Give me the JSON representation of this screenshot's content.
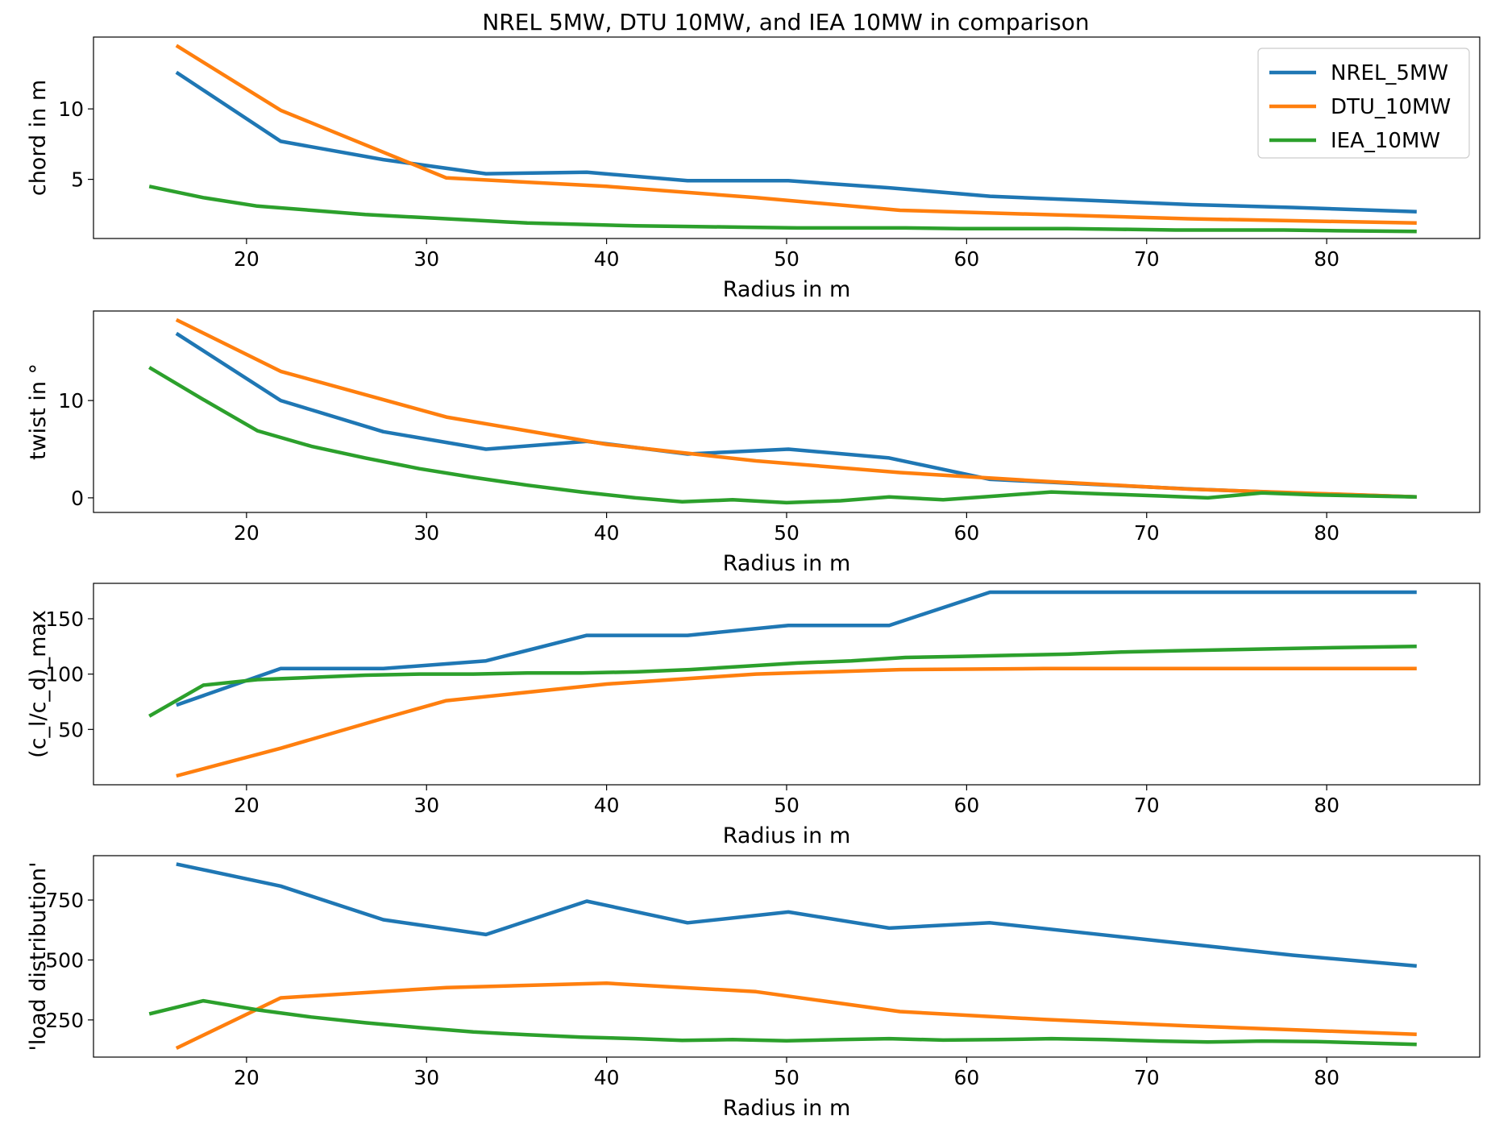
{
  "figure": {
    "title": "NREL 5MW, DTU 10MW, and IEA 10MW in comparison"
  },
  "colors": {
    "NREL_5MW": "#1f77b4",
    "DTU_10MW": "#ff7f0e",
    "IEA_10MW": "#2ca02c"
  },
  "legend": {
    "placement": "upper-right",
    "subplot": 0,
    "entries": [
      "NREL_5MW",
      "DTU_10MW",
      "IEA_10MW"
    ]
  },
  "chart_data": [
    {
      "type": "line",
      "title": "NREL 5MW, DTU 10MW, and IEA 10MW in comparison",
      "xlabel": "Radius in m",
      "ylabel": "chord in m",
      "ylabel_display": "chord in m",
      "xlim": [
        11.5,
        88.5
      ],
      "ylim": [
        0.8,
        15.1
      ],
      "xticks": [
        20,
        30,
        40,
        50,
        60,
        70,
        80
      ],
      "yticks": [
        5,
        10
      ],
      "grid": false,
      "series": [
        {
          "name": "NREL_5MW",
          "x": [
            16.1,
            21.9,
            27.6,
            33.3,
            38.9,
            44.5,
            50.1,
            55.7,
            61.3,
            66.9,
            72.5,
            78.1,
            85.0
          ],
          "y": [
            12.6,
            7.7,
            6.4,
            5.4,
            5.5,
            4.9,
            4.9,
            4.4,
            3.8,
            3.5,
            3.2,
            3.0,
            2.7
          ]
        },
        {
          "name": "DTU_10MW",
          "x": [
            16.1,
            21.9,
            31.1,
            40.0,
            48.3,
            56.3,
            64.3,
            72.3,
            85.0
          ],
          "y": [
            14.5,
            9.9,
            5.1,
            4.5,
            3.7,
            2.8,
            2.5,
            2.2,
            1.9
          ]
        },
        {
          "name": "IEA_10MW",
          "x": [
            14.6,
            17.6,
            20.6,
            23.6,
            26.6,
            29.6,
            32.6,
            35.6,
            38.6,
            41.6,
            44.6,
            47.6,
            50.6,
            53.6,
            56.6,
            59.6,
            62.6,
            65.6,
            68.6,
            71.6,
            74.6,
            77.6,
            80.6,
            85.0
          ],
          "y": [
            4.5,
            3.7,
            3.1,
            2.8,
            2.5,
            2.3,
            2.1,
            1.9,
            1.8,
            1.7,
            1.65,
            1.6,
            1.55,
            1.55,
            1.55,
            1.5,
            1.5,
            1.5,
            1.45,
            1.4,
            1.4,
            1.4,
            1.35,
            1.3
          ]
        }
      ]
    },
    {
      "type": "line",
      "xlabel": "Radius in m",
      "ylabel": "twist in °",
      "ylabel_display": "twist in °",
      "xlim": [
        11.5,
        88.5
      ],
      "ylim": [
        -1.5,
        19.2
      ],
      "xticks": [
        20,
        30,
        40,
        50,
        60,
        70,
        80
      ],
      "yticks": [
        0,
        10
      ],
      "grid": false,
      "series": [
        {
          "name": "NREL_5MW",
          "x": [
            16.1,
            21.9,
            27.6,
            33.3,
            38.9,
            44.5,
            50.1,
            55.7,
            61.3,
            66.9,
            72.5,
            78.1,
            85.0
          ],
          "y": [
            16.9,
            10.0,
            6.8,
            5.0,
            5.8,
            4.5,
            5.0,
            4.1,
            1.9,
            1.4,
            0.9,
            0.5,
            0.1
          ]
        },
        {
          "name": "DTU_10MW",
          "x": [
            16.1,
            21.9,
            31.1,
            40.0,
            48.3,
            56.3,
            64.3,
            72.3,
            85.0
          ],
          "y": [
            18.3,
            13.0,
            8.3,
            5.5,
            3.8,
            2.6,
            1.7,
            0.9,
            0.1
          ]
        },
        {
          "name": "IEA_10MW",
          "x": [
            14.6,
            17.6,
            20.6,
            23.6,
            26.6,
            29.6,
            32.6,
            35.6,
            38.6,
            41.6,
            44.2,
            47.0,
            50.0,
            53.0,
            55.7,
            58.7,
            61.7,
            64.7,
            67.7,
            70.7,
            73.4,
            76.4,
            79.4,
            85.0
          ],
          "y": [
            13.4,
            10.1,
            6.9,
            5.3,
            4.1,
            3.0,
            2.1,
            1.3,
            0.6,
            0.0,
            -0.4,
            -0.2,
            -0.5,
            -0.3,
            0.1,
            -0.2,
            0.2,
            0.6,
            0.4,
            0.2,
            0.0,
            0.5,
            0.3,
            0.1
          ]
        }
      ]
    },
    {
      "type": "line",
      "xlabel": "Radius in m",
      "ylabel": "(c_l/c_d)_max",
      "ylabel_display": "(c_l/c_d)_max",
      "xlim": [
        11.5,
        88.5
      ],
      "ylim": [
        0,
        182
      ],
      "xticks": [
        20,
        30,
        40,
        50,
        60,
        70,
        80
      ],
      "yticks": [
        50,
        100,
        150
      ],
      "grid": false,
      "series": [
        {
          "name": "NREL_5MW",
          "x": [
            16.1,
            21.9,
            27.6,
            33.3,
            38.9,
            44.5,
            50.1,
            55.7,
            61.3,
            66.9,
            72.5,
            78.1,
            85.0
          ],
          "y": [
            72,
            105,
            105,
            112,
            135,
            135,
            144,
            144,
            174,
            174,
            174,
            174,
            174
          ]
        },
        {
          "name": "DTU_10MW",
          "x": [
            16.1,
            21.9,
            27.6,
            31.1,
            40.0,
            48.3,
            56.3,
            64.3,
            72.3,
            85.0
          ],
          "y": [
            8,
            33,
            60,
            76,
            91,
            100,
            104,
            105,
            105,
            105
          ]
        },
        {
          "name": "IEA_10MW",
          "x": [
            14.6,
            17.6,
            20.6,
            23.6,
            26.6,
            29.6,
            32.6,
            35.6,
            38.6,
            41.6,
            44.6,
            47.6,
            50.6,
            53.6,
            56.6,
            59.6,
            62.6,
            65.6,
            68.6,
            71.6,
            74.6,
            77.6,
            80.6,
            85.0
          ],
          "y": [
            62,
            90,
            95,
            97,
            99,
            100,
            100,
            101,
            101,
            102,
            104,
            107,
            110,
            112,
            115,
            116,
            117,
            118,
            120,
            121,
            122,
            123,
            124,
            125
          ]
        }
      ]
    },
    {
      "type": "line",
      "xlabel": "Radius in m",
      "ylabel": "'load distribution'",
      "ylabel_display": "'load distribution'",
      "xlim": [
        11.5,
        88.5
      ],
      "ylim": [
        95,
        935
      ],
      "xticks": [
        20,
        30,
        40,
        50,
        60,
        70,
        80
      ],
      "yticks": [
        250,
        500,
        750
      ],
      "grid": false,
      "series": [
        {
          "name": "NREL_5MW",
          "x": [
            16.1,
            21.9,
            27.6,
            33.3,
            38.9,
            44.5,
            50.1,
            55.7,
            61.3,
            66.9,
            72.5,
            78.1,
            85.0
          ],
          "y": [
            900,
            808,
            668,
            606,
            745,
            655,
            700,
            633,
            655,
            610,
            565,
            520,
            475
          ]
        },
        {
          "name": "DTU_10MW",
          "x": [
            16.1,
            21.9,
            31.1,
            40.0,
            48.3,
            56.3,
            64.3,
            72.3,
            85.0
          ],
          "y": [
            132,
            342,
            385,
            403,
            368,
            285,
            252,
            225,
            190
          ]
        },
        {
          "name": "IEA_10MW",
          "x": [
            14.6,
            17.6,
            20.6,
            23.6,
            26.6,
            29.6,
            32.6,
            35.6,
            38.6,
            41.6,
            44.2,
            47.0,
            50.0,
            53.0,
            55.7,
            58.7,
            61.7,
            64.7,
            67.7,
            70.7,
            73.4,
            76.4,
            79.4,
            85.0
          ],
          "y": [
            275,
            330,
            292,
            262,
            238,
            218,
            200,
            188,
            178,
            172,
            165,
            168,
            163,
            168,
            172,
            166,
            168,
            172,
            168,
            162,
            158,
            162,
            160,
            148
          ]
        }
      ]
    }
  ]
}
